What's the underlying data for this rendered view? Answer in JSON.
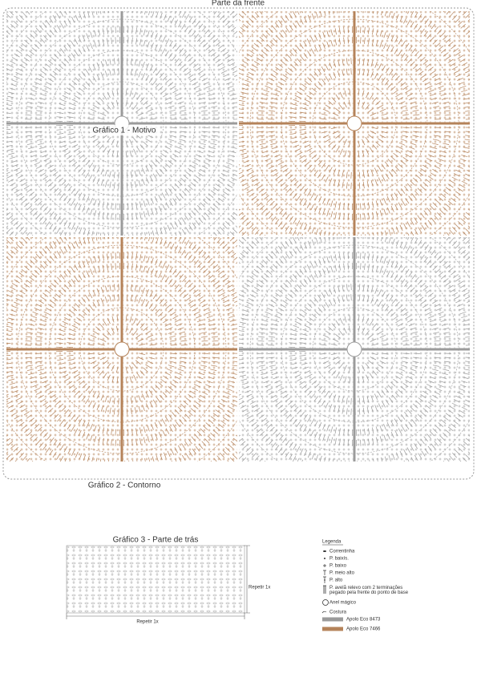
{
  "header": {
    "title": "Parte da frente"
  },
  "chart1": {
    "label": "Gráfico 1 - Motivo"
  },
  "chart2": {
    "label": "Gráfico 2 - Contorno"
  },
  "chart3": {
    "title": "Gráfico 3 - Parte de trás",
    "repeat_right": "Repetir 1x",
    "repeat_bottom": "Repetir 1x"
  },
  "legend": {
    "title": "Legenda",
    "items": [
      {
        "label": "Correntinha"
      },
      {
        "label": "P. baixís."
      },
      {
        "label": "P. baixo"
      },
      {
        "label": "P. meio alto"
      },
      {
        "label": "P. alto"
      },
      {
        "label": "P. avelã relevo com 2 terminações pegado pela frente do ponto de base"
      },
      {
        "label": "Anel mágico"
      },
      {
        "label": "Costura"
      },
      {
        "label": "Apolo Eco 8473",
        "color": "#9b9b9b"
      },
      {
        "label": "Apolo Eco 7466",
        "color": "#b5835a"
      }
    ]
  }
}
